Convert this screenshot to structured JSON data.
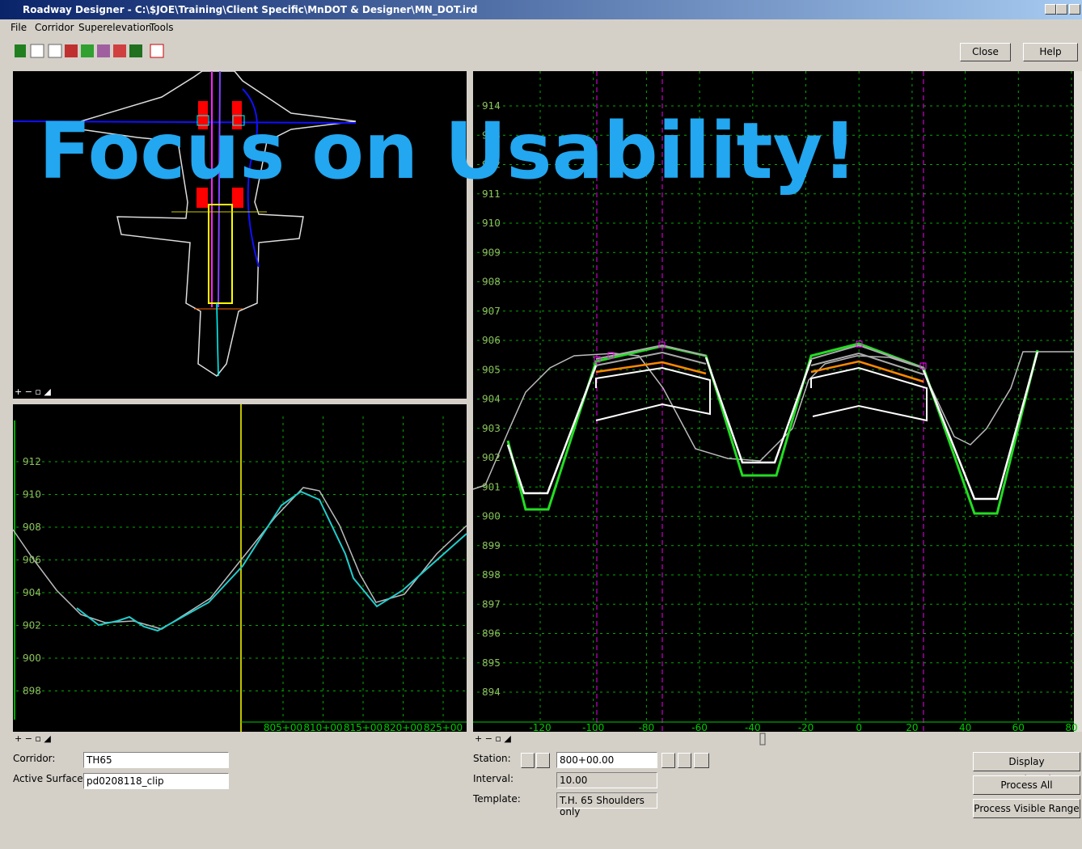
{
  "window": {
    "title": "Roadway Designer - C:\\$JOE\\Training\\Client Specific\\MnDOT & Designer\\MN_DOT.ird"
  },
  "menu": [
    "File",
    "Corridor",
    "Superelevation",
    "Tools"
  ],
  "toolbar": {
    "close": "Close",
    "help": "Help"
  },
  "overlay": "Focus on Usability!",
  "profile": {
    "y_labels": [
      "912",
      "910",
      "908",
      "906",
      "904",
      "902",
      "900",
      "898"
    ],
    "x_labels": [
      "805+00",
      "810+00",
      "815+00",
      "820+00",
      "825+00"
    ]
  },
  "cross_section": {
    "y_labels": [
      "914",
      "913",
      "912",
      "911",
      "910",
      "909",
      "908",
      "907",
      "906",
      "905",
      "904",
      "903",
      "902",
      "901",
      "900",
      "899",
      "898",
      "897",
      "896",
      "895",
      "894"
    ],
    "x_labels": [
      "-120",
      "-100",
      "-80",
      "-60",
      "-40",
      "-20",
      "0",
      "20",
      "40",
      "60",
      "80"
    ]
  },
  "form": {
    "corridor_label": "Corridor:",
    "corridor": "TH65",
    "surface_label": "Active Surface:",
    "surface": "pd0208118_clip",
    "station_label": "Station:",
    "station": "800+00.00",
    "interval_label": "Interval:",
    "interval": "10.00",
    "template_label": "Template:",
    "template": "T.H. 65 Shoulders only"
  },
  "buttons": [
    "Display  Superelevation",
    "Process All",
    "Process Visible Range"
  ]
}
